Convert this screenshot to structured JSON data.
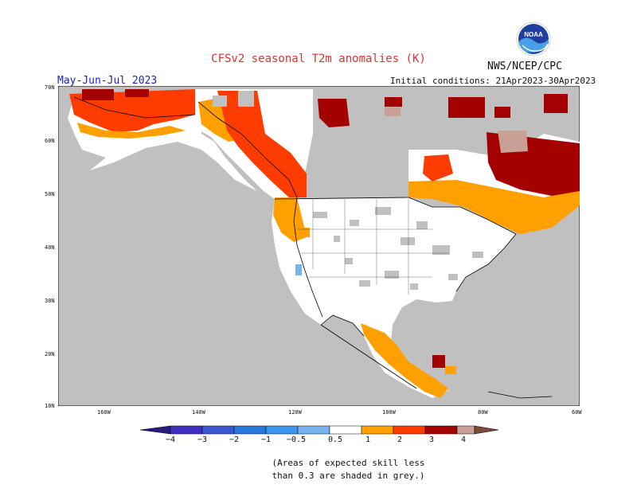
{
  "header": {
    "title": "CFSv2 seasonal T2m anomalies (K)",
    "organization": "NWS/NCEP/CPC",
    "period": "May-Jun-Jul 2023",
    "initial_conditions": "Initial conditions: 21Apr2023-30Apr2023",
    "logo_text": "NOAA"
  },
  "map": {
    "lat_labels": [
      "70N",
      "60N",
      "50N",
      "40N",
      "30N",
      "20N",
      "10N"
    ],
    "lon_labels": [
      "160W",
      "140W",
      "120W",
      "100W",
      "80W",
      "60W"
    ],
    "colors": {
      "land_no_skill": "#c0c0c0",
      "ocean": "#c0c0c0",
      "neutral": "#ffffff",
      "warm_0_5_1": "#ffa000",
      "warm_1_2": "#ff3c00",
      "warm_2_3": "#a50000",
      "warm_3_4": "#c8a096",
      "cool_1_0_5": "#78b4f0"
    }
  },
  "legend": {
    "labels": [
      "−4",
      "−3",
      "−2",
      "−1",
      "−0.5",
      "0.5",
      "1",
      "2",
      "3",
      "4"
    ],
    "colors": [
      "#4030c0",
      "#3c55d0",
      "#2878dc",
      "#3c96f0",
      "#78b4f0",
      "#ffffff",
      "#ffa000",
      "#ff3c00",
      "#ff3c00",
      "#a50000",
      "#c8a096"
    ],
    "arrow_left_color": "#2a1a80",
    "arrow_right_color": "#7a4a3a"
  },
  "footnote": {
    "line1": "(Areas of expected skill less",
    "line2": "than 0.3 are shaded in grey.)"
  }
}
